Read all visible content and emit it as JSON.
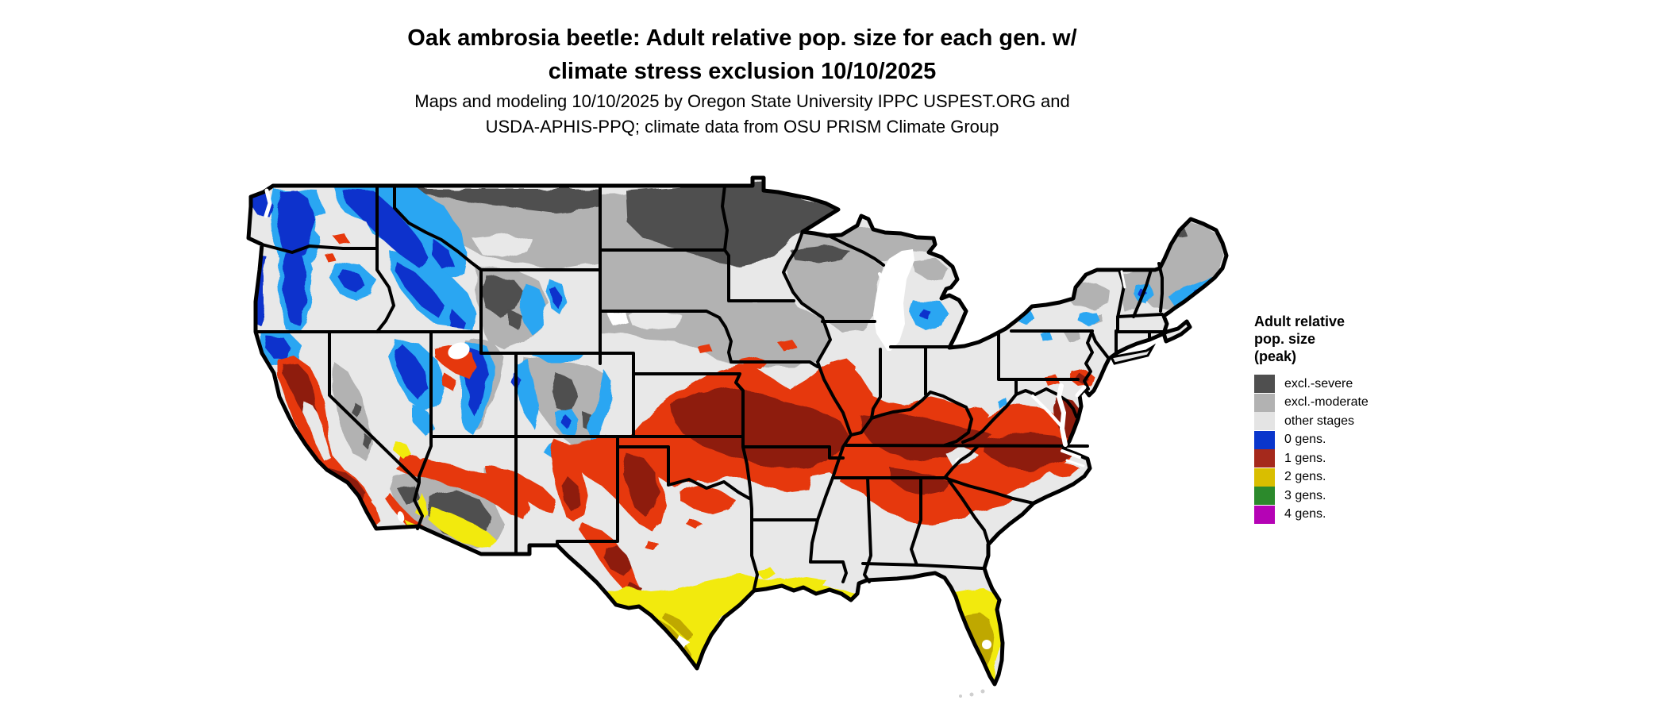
{
  "title": {
    "line1": "Oak ambrosia beetle: Adult relative pop. size for each gen. w/",
    "line2": "climate stress exclusion 10/10/2025"
  },
  "subtitle": {
    "line1": "Maps and modeling 10/10/2025 by Oregon State University IPPC USPEST.ORG and",
    "line2": "USDA-APHIS-PPQ; climate data from OSU PRISM Climate Group"
  },
  "date_shown": "10/10/2025",
  "legend": {
    "title_lines": [
      "Adult relative",
      "pop. size",
      "(peak)"
    ],
    "items": [
      {
        "label": "excl.-severe",
        "color": "#4f4f4f"
      },
      {
        "label": "excl.-moderate",
        "color": "#b2b2b2"
      },
      {
        "label": "other stages",
        "color": "#e4e4e4"
      },
      {
        "label": "0 gens.",
        "color": "#0a36cc"
      },
      {
        "label": "1 gens.",
        "color": "#a5291c"
      },
      {
        "label": "2 gens.",
        "color": "#d9be00"
      },
      {
        "label": "3 gens.",
        "color": "#2c8a2c"
      },
      {
        "label": "4 gens.",
        "color": "#b503b5"
      }
    ]
  },
  "map": {
    "region": "Contiguous United States",
    "palette": {
      "severe": "#4f4f4f",
      "moderate": "#b2b2b2",
      "other": "#e8e8e8",
      "gen0": "#0a33cc",
      "gen0_light": "#29a6f2",
      "gen1": "#e6380c",
      "gen1_dark": "#8e1c0c",
      "gen2": "#f2ea10",
      "gen2_dark": "#bfa800",
      "water": "#ffffff"
    },
    "observed_distribution": {
      "excl_severe": "northern Montana border strip, eastern North Dakota, northern Minnesota, northern Wisconsin fringe, high Rockies and desert core of Arizona / SE California, far-north Maine specks",
      "excl_moderate": "northern plains (Montana, Dakotas, Minnesota, Iowa, Wisconsin, Michigan UP), Colorado Rockies, Yellowstone area, Sierra crest, Adirondacks and northern New England",
      "other_stages": "pale gray across Great Basin, central Texas, Gulf coastal plain interior, Ohio valley north, coastal plain of the Carolinas and Georgia",
      "gen0_blue": "Cascades, Olympics, northern Idaho / western Montana, NE Oregon, Utah Wasatch, Nevada ranges, Colorado mountain fringes, northern Michigan, Adirondacks, White Mountains, coastal Maine",
      "gen1_red": "central/southern plains through Missouri, southern Illinois/Indiana, Kentucky, Tennessee, Virginia, western Carolinas, north Alabama/Georgia, California Central Valley and SoCal, NE New Mexico / SE Colorado, west Texas mountains",
      "gen2_yellow": "south Texas, Texas-Louisiana Gulf coast, southern Florida peninsula, low deserts of Arizona / SE California",
      "gen3_green": "legend only (not visible on map)",
      "gen4_magenta": "legend only (not visible on map)"
    }
  }
}
